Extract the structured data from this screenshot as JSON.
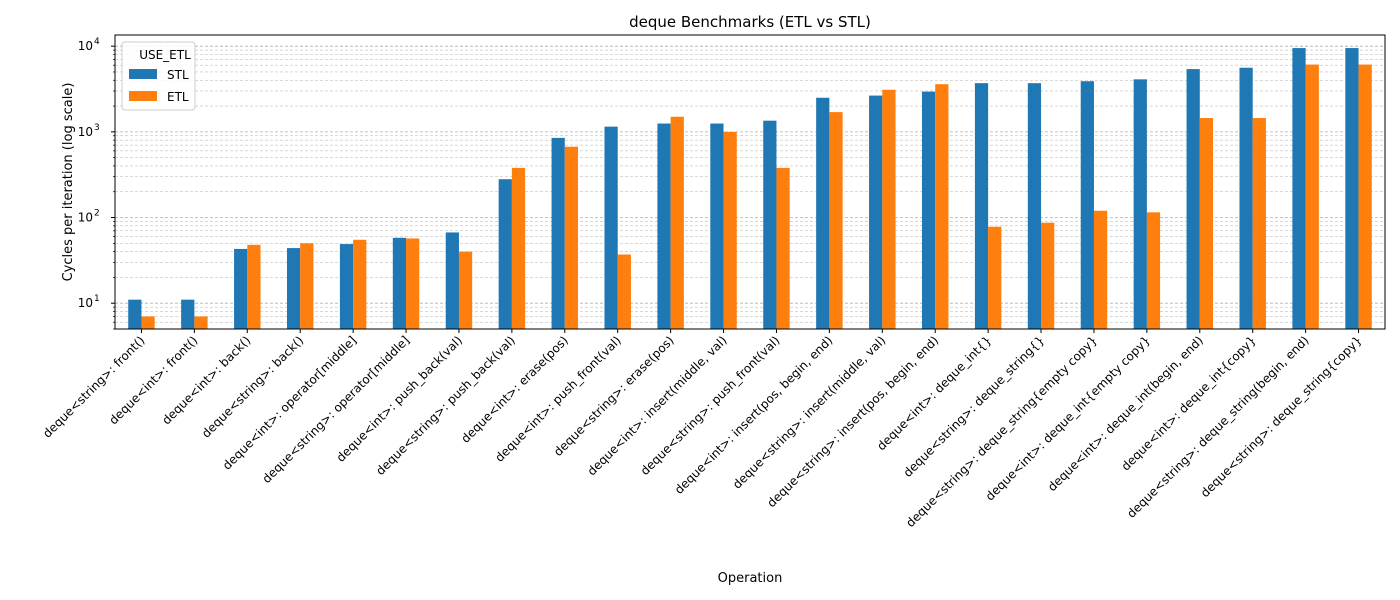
{
  "chart_data": {
    "type": "bar",
    "title": "deque Benchmarks (ETL vs STL)",
    "xlabel": "Operation",
    "ylabel": "Cycles per iteration (log scale)",
    "yscale": "log",
    "ylim": [
      5,
      13500
    ],
    "yticks": [
      {
        "value": 10,
        "base": "10",
        "exp": "1"
      },
      {
        "value": 100,
        "base": "10",
        "exp": "2"
      },
      {
        "value": 1000,
        "base": "10",
        "exp": "3"
      },
      {
        "value": 10000,
        "base": "10",
        "exp": "4"
      }
    ],
    "grid": true,
    "legend": {
      "title": "USE_ETL",
      "position": "top-left"
    },
    "categories": [
      "deque<string>: front()",
      "deque<int>: front()",
      "deque<int>: back()",
      "deque<string>: back()",
      "deque<int>: operator[middle]",
      "deque<string>: operator[middle]",
      "deque<int>: push_back(val)",
      "deque<string>: push_back(val)",
      "deque<int>: erase(pos)",
      "deque<int>: push_front(val)",
      "deque<string>: erase(pos)",
      "deque<int>: insert(middle, val)",
      "deque<string>: push_front(val)",
      "deque<int>: insert(pos, begin, end)",
      "deque<string>: insert(middle, val)",
      "deque<string>: insert(pos, begin, end)",
      "deque<int>: deque_int{}",
      "deque<string>: deque_string{}",
      "deque<string>: deque_string{empty copy}",
      "deque<int>: deque_int{empty copy}",
      "deque<int>: deque_int(begin, end)",
      "deque<int>: deque_int{copy}",
      "deque<string>: deque_string(begin, end)",
      "deque<string>: deque_string{copy}"
    ],
    "series": [
      {
        "name": "STL",
        "color": "#1f77b4",
        "values": [
          11,
          11,
          43,
          44,
          49,
          58,
          67,
          280,
          850,
          1150,
          1250,
          1250,
          1350,
          2500,
          2650,
          2950,
          3700,
          3700,
          3900,
          4100,
          5400,
          5600,
          9500,
          9500
        ]
      },
      {
        "name": "ETL",
        "color": "#ff7f0e",
        "values": [
          7,
          7,
          48,
          50,
          55,
          57,
          40,
          380,
          670,
          37,
          1500,
          1000,
          380,
          1700,
          3100,
          3600,
          78,
          87,
          120,
          115,
          1450,
          1450,
          6100,
          6100
        ]
      }
    ]
  }
}
